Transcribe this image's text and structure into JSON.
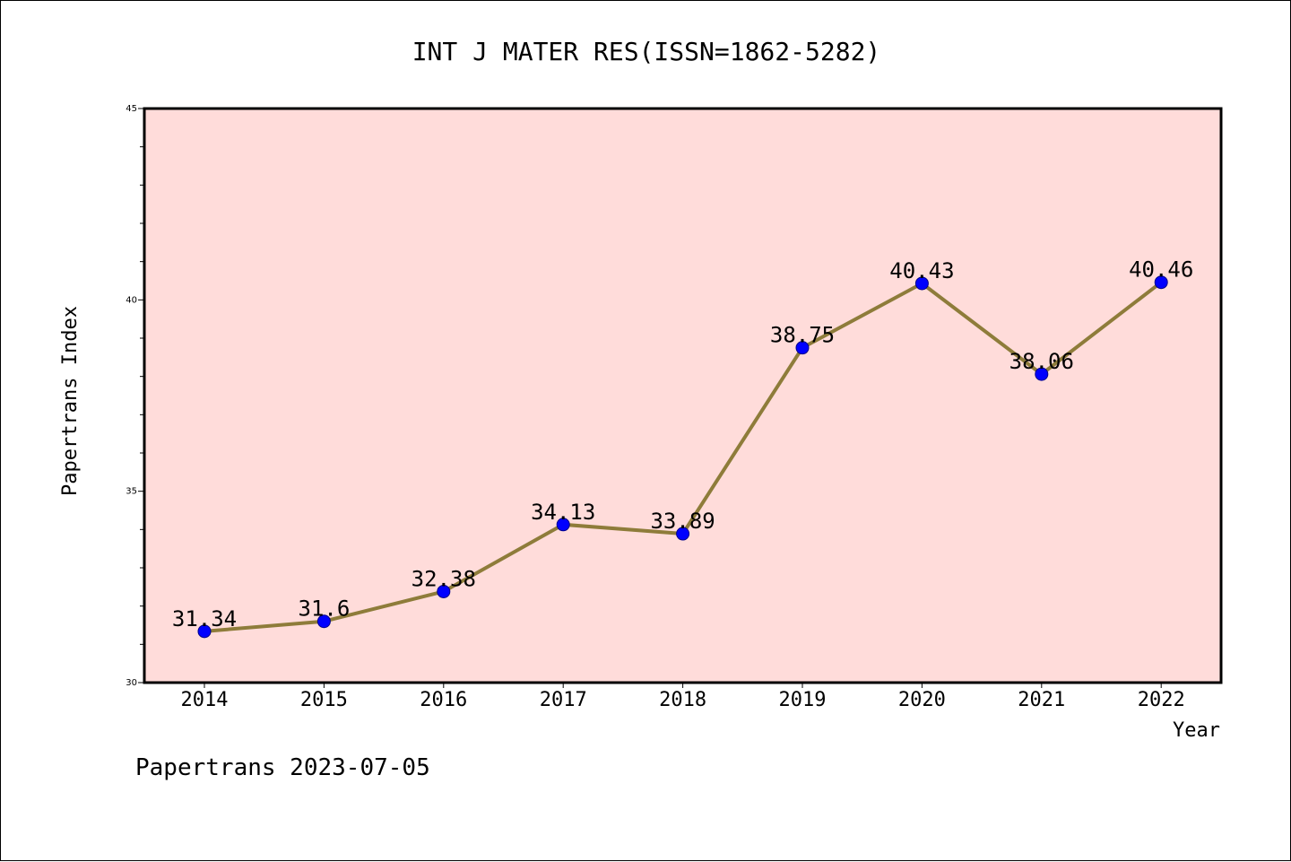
{
  "footer": "Papertrans 2023-07-05",
  "chart_data": {
    "type": "line",
    "title": "INT J MATER RES(ISSN=1862-5282)",
    "xlabel": "Year",
    "ylabel": "Papertrans Index",
    "ylim": [
      30,
      45
    ],
    "y_ticks": [
      "30",
      "35",
      "40",
      "45"
    ],
    "categories": [
      "2014",
      "2015",
      "2016",
      "2017",
      "2018",
      "2019",
      "2020",
      "2021",
      "2022"
    ],
    "series": [
      {
        "values": [
          31.34,
          31.6,
          32.38,
          34.13,
          33.89,
          38.75,
          40.43,
          38.06,
          40.46
        ],
        "labels": [
          "31.34",
          "31.6",
          "32.38",
          "34.13",
          "33.89",
          "38.75",
          "40.43",
          "38.06",
          "40.46"
        ]
      }
    ],
    "grid": false,
    "legend": "none",
    "colors": {
      "plot_background": "#FFDCDA",
      "line": "#8E7C3A",
      "marker": "#0000FF"
    }
  }
}
